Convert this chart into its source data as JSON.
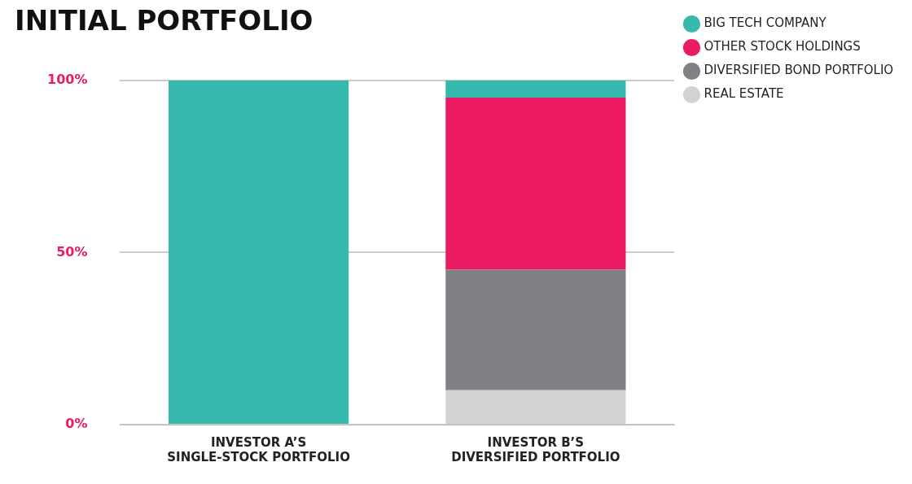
{
  "chart_data": {
    "type": "bar",
    "title": "INITIAL PORTFOLIO",
    "categories": [
      "INVESTOR A’S\nSINGLE-STOCK PORTFOLIO",
      "INVESTOR B’S\nDIVERSIFIED PORTFOLIO"
    ],
    "stacked": true,
    "series": [
      {
        "name": "REAL ESTATE",
        "color": "#d1d2d4",
        "values": [
          0,
          10
        ]
      },
      {
        "name": "DIVERSIFIED BOND PORTFOLIO",
        "color": "#808184",
        "values": [
          0,
          35
        ]
      },
      {
        "name": "OTHER STOCK HOLDINGS",
        "color": "#ec1a63",
        "values": [
          0,
          50
        ]
      },
      {
        "name": "BIG TECH COMPANY",
        "color": "#36b9ad",
        "values": [
          100,
          5
        ]
      }
    ],
    "ylim": [
      0,
      100
    ],
    "yticks": [
      {
        "value": 0,
        "label": "0%"
      },
      {
        "value": 50,
        "label": "50%"
      },
      {
        "value": 100,
        "label": "100%"
      }
    ],
    "grid": "y",
    "legend": "top right"
  }
}
